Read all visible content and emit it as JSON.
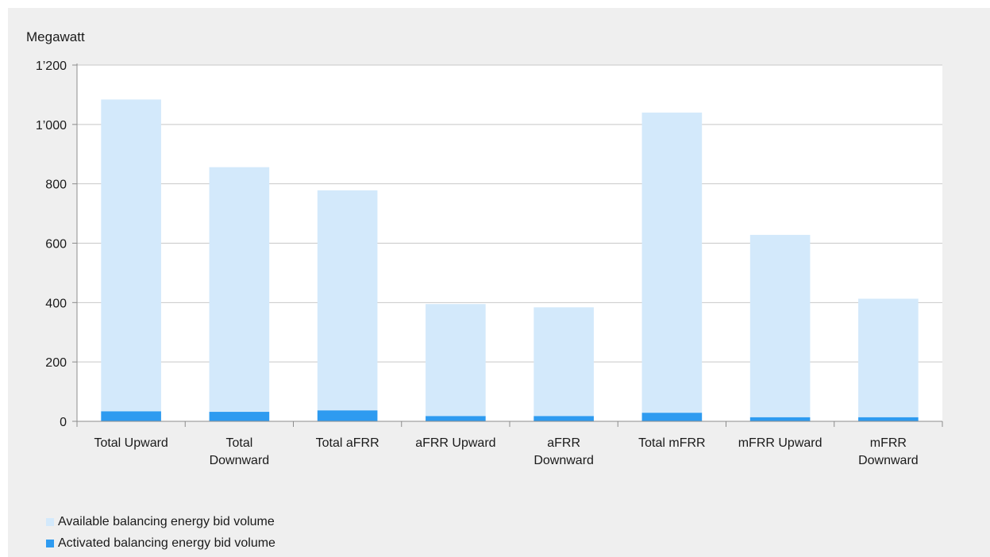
{
  "chart_data": {
    "type": "bar",
    "stacked": true,
    "ylabel": "Megawatt",
    "ylim": [
      0,
      1200
    ],
    "yticks": [
      0,
      200,
      400,
      600,
      800,
      1000,
      1200
    ],
    "ytick_labels": [
      "0",
      "200",
      "400",
      "600",
      "800",
      "1’000",
      "1’200"
    ],
    "grid": true,
    "categories": [
      [
        "Total Upward"
      ],
      [
        "Total",
        "Downward"
      ],
      [
        "Total aFRR"
      ],
      [
        "aFRR Upward"
      ],
      [
        "aFRR",
        "Downward"
      ],
      [
        "Total mFRR"
      ],
      [
        "mFRR Upward"
      ],
      [
        "mFRR",
        "Downward"
      ]
    ],
    "series": [
      {
        "name": "Activated balancing energy bid volume",
        "color": "#2e9bf0",
        "values": [
          34,
          32,
          37,
          18,
          18,
          29,
          14,
          14
        ]
      },
      {
        "name": "Available balancing energy bid volume",
        "color": "#d3e9fb",
        "values": [
          1050,
          824,
          741,
          377,
          366,
          1011,
          614,
          399
        ]
      }
    ],
    "legend_position": "bottom-left"
  },
  "legend": {
    "items": [
      {
        "label": "Available balancing energy bid volume",
        "color": "#d3e9fb"
      },
      {
        "label": "Activated balancing energy bid volume",
        "color": "#2e9bf0"
      }
    ]
  }
}
